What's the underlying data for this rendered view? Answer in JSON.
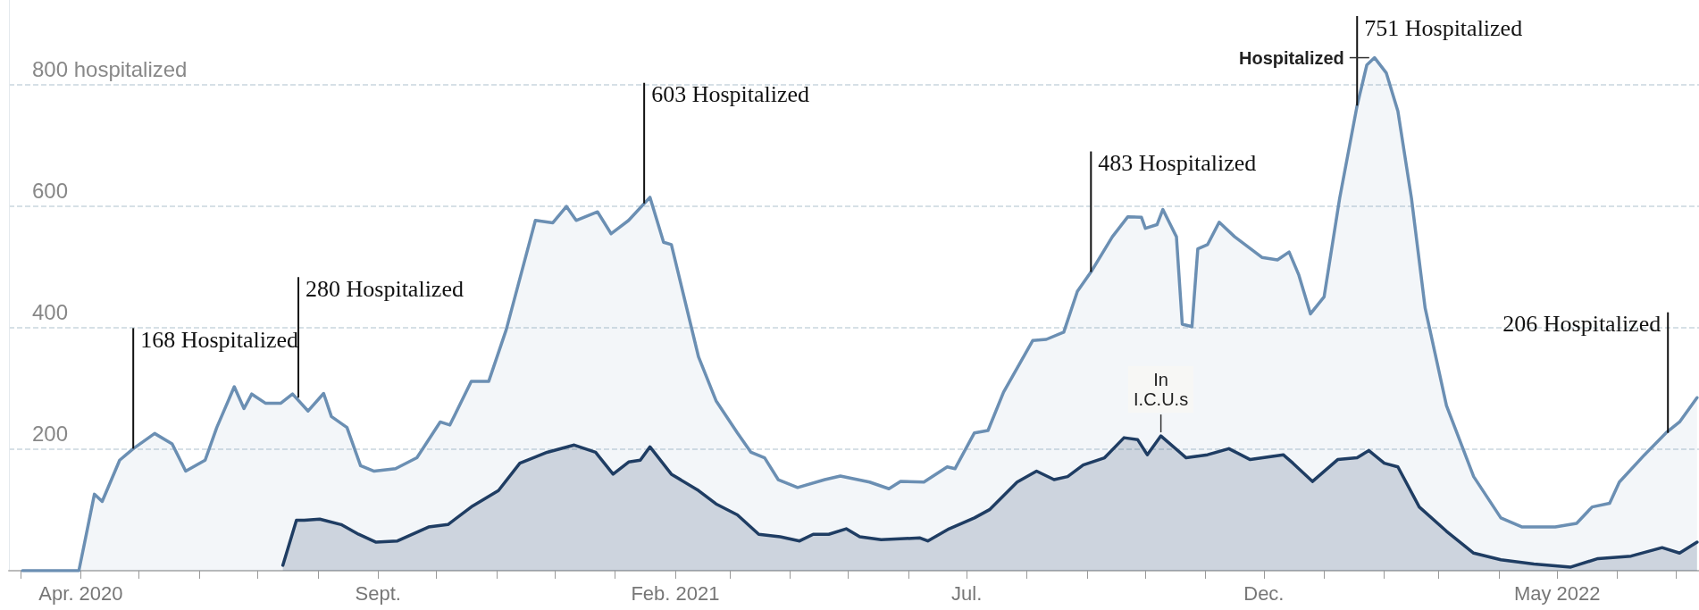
{
  "chart_data": {
    "type": "area",
    "legend": false,
    "grid": "y",
    "xlim": [
      "2020-02-24",
      "2022-07-13"
    ],
    "xticks": [
      {
        "value": "2020-03-01",
        "label": null
      },
      {
        "value": "2020-04-01",
        "label": "Apr. 2020"
      },
      {
        "value": "2020-05-01",
        "label": null
      },
      {
        "value": "2020-06-01",
        "label": null
      },
      {
        "value": "2020-07-01",
        "label": null
      },
      {
        "value": "2020-08-01",
        "label": null
      },
      {
        "value": "2020-09-01",
        "label": "Sept."
      },
      {
        "value": "2020-10-01",
        "label": null
      },
      {
        "value": "2020-11-01",
        "label": null
      },
      {
        "value": "2020-12-01",
        "label": null
      },
      {
        "value": "2021-01-01",
        "label": null
      },
      {
        "value": "2021-02-01",
        "label": "Feb. 2021"
      },
      {
        "value": "2021-03-01",
        "label": null
      },
      {
        "value": "2021-04-01",
        "label": null
      },
      {
        "value": "2021-05-01",
        "label": null
      },
      {
        "value": "2021-06-01",
        "label": null
      },
      {
        "value": "2021-07-01",
        "label": "Jul."
      },
      {
        "value": "2021-08-01",
        "label": null
      },
      {
        "value": "2021-09-01",
        "label": null
      },
      {
        "value": "2021-10-01",
        "label": null
      },
      {
        "value": "2021-11-01",
        "label": null
      },
      {
        "value": "2021-12-01",
        "label": "Dec."
      },
      {
        "value": "2022-01-01",
        "label": null
      },
      {
        "value": "2022-02-01",
        "label": null
      },
      {
        "value": "2022-03-01",
        "label": null
      },
      {
        "value": "2022-04-01",
        "label": null
      },
      {
        "value": "2022-05-01",
        "label": "May 2022"
      },
      {
        "value": "2022-06-01",
        "label": null
      },
      {
        "value": "2022-07-01",
        "label": null
      }
    ],
    "ylim": [
      0,
      940
    ],
    "yticks": [
      200,
      400,
      600,
      {
        "value": 800,
        "label": "800 hospitalized"
      }
    ],
    "series": [
      {
        "name": "Hospitalized",
        "color": "#6b8fb3",
        "x": [
          "2020-03-02",
          "2020-03-31",
          "2020-04-03",
          "2020-04-08",
          "2020-04-12",
          "2020-04-21",
          "2020-04-28",
          "2020-05-09",
          "2020-05-18",
          "2020-05-25",
          "2020-06-04",
          "2020-06-10",
          "2020-06-19",
          "2020-06-24",
          "2020-06-28",
          "2020-07-05",
          "2020-07-13",
          "2020-07-19",
          "2020-07-27",
          "2020-08-04",
          "2020-08-08",
          "2020-08-16",
          "2020-08-23",
          "2020-08-30",
          "2020-09-10",
          "2020-09-21",
          "2020-10-03",
          "2020-10-08",
          "2020-10-19",
          "2020-10-28",
          "2020-11-06",
          "2020-11-21",
          "2020-11-30",
          "2020-12-07",
          "2020-12-12",
          "2020-12-23",
          "2020-12-30",
          "2021-01-08",
          "2021-01-19",
          "2021-01-26",
          "2021-01-30",
          "2021-02-13",
          "2021-02-22",
          "2021-03-05",
          "2021-03-12",
          "2021-03-19",
          "2021-03-26",
          "2021-04-05",
          "2021-04-19",
          "2021-04-27",
          "2021-05-12",
          "2021-05-22",
          "2021-05-28",
          "2021-06-09",
          "2021-06-21",
          "2021-06-25",
          "2021-07-05",
          "2021-07-12",
          "2021-07-20",
          "2021-08-04",
          "2021-08-11",
          "2021-08-20",
          "2021-08-27",
          "2021-09-03",
          "2021-09-14",
          "2021-09-22",
          "2021-09-29",
          "2021-10-01",
          "2021-10-07",
          "2021-10-10",
          "2021-10-17",
          "2021-10-20",
          "2021-10-25",
          "2021-10-28",
          "2021-11-02",
          "2021-11-08",
          "2021-11-16",
          "2021-11-30",
          "2021-12-08",
          "2021-12-14",
          "2021-12-19",
          "2021-12-25",
          "2022-01-01",
          "2022-01-09",
          "2022-01-18",
          "2022-01-23",
          "2022-01-27",
          "2022-02-02",
          "2022-02-08",
          "2022-02-15",
          "2022-02-22",
          "2022-03-05",
          "2022-03-19",
          "2022-04-02",
          "2022-04-13",
          "2022-04-30",
          "2022-05-11",
          "2022-05-19",
          "2022-05-28",
          "2022-06-02",
          "2022-06-15",
          "2022-06-26",
          "2022-07-03",
          "2022-07-12"
        ],
        "values": [
          0,
          0,
          47,
          126,
          114,
          182,
          201,
          226,
          209,
          164,
          182,
          236,
          303,
          267,
          291,
          276,
          276,
          291,
          263,
          292,
          254,
          236,
          173,
          164,
          168,
          186,
          245,
          240,
          312,
          312,
          397,
          577,
          573,
          600,
          577,
          591,
          555,
          577,
          615,
          541,
          537,
          352,
          280,
          227,
          195,
          186,
          150,
          137,
          150,
          156,
          146,
          135,
          147,
          146,
          171,
          168,
          227,
          231,
          294,
          379,
          381,
          393,
          460,
          492,
          550,
          583,
          582,
          564,
          570,
          595,
          550,
          406,
          402,
          530,
          537,
          574,
          550,
          516,
          512,
          525,
          487,
          423,
          451,
          613,
          766,
          833,
          845,
          820,
          757,
          613,
          433,
          272,
          155,
          87,
          72,
          72,
          78,
          105,
          111,
          146,
          191,
          227,
          245,
          285
        ]
      },
      {
        "name": "In I.C.U.s",
        "color": "#1f3d63",
        "x": [
          "2020-07-14",
          "2020-07-21",
          "2020-07-25",
          "2020-08-02",
          "2020-08-13",
          "2020-08-22",
          "2020-08-31",
          "2020-09-11",
          "2020-09-27",
          "2020-10-07",
          "2020-10-19",
          "2020-11-02",
          "2020-11-13",
          "2020-11-27",
          "2020-12-11",
          "2020-12-22",
          "2020-12-31",
          "2021-01-08",
          "2021-01-14",
          "2021-01-19",
          "2021-01-30",
          "2021-02-13",
          "2021-02-22",
          "2021-03-05",
          "2021-03-16",
          "2021-03-27",
          "2021-04-06",
          "2021-04-13",
          "2021-04-21",
          "2021-04-30",
          "2021-05-07",
          "2021-05-18",
          "2021-06-07",
          "2021-06-11",
          "2021-06-22",
          "2021-07-05",
          "2021-07-13",
          "2021-07-27",
          "2021-08-06",
          "2021-08-15",
          "2021-08-22",
          "2021-08-30",
          "2021-09-10",
          "2021-09-20",
          "2021-09-27",
          "2021-10-02",
          "2021-10-09",
          "2021-10-22",
          "2021-11-02",
          "2021-11-13",
          "2021-11-24",
          "2021-12-11",
          "2021-12-16",
          "2021-12-26",
          "2022-01-08",
          "2022-01-18",
          "2022-01-24",
          "2022-02-01",
          "2022-02-08",
          "2022-02-19",
          "2022-03-05",
          "2022-03-19",
          "2022-04-02",
          "2022-04-19",
          "2022-05-08",
          "2022-05-22",
          "2022-06-08",
          "2022-06-24",
          "2022-07-03",
          "2022-07-12"
        ],
        "values": [
          9,
          83,
          83,
          85,
          76,
          60,
          47,
          49,
          72,
          76,
          105,
          132,
          177,
          195,
          207,
          195,
          159,
          179,
          182,
          204,
          159,
          132,
          110,
          92,
          60,
          56,
          49,
          60,
          60,
          69,
          56,
          51,
          54,
          49,
          69,
          87,
          101,
          146,
          164,
          150,
          155,
          174,
          186,
          219,
          216,
          191,
          222,
          186,
          191,
          201,
          183,
          191,
          177,
          147,
          183,
          186,
          198,
          177,
          171,
          105,
          65,
          29,
          18,
          11,
          6,
          20,
          24,
          38,
          29,
          47
        ]
      }
    ],
    "annotations": [
      {
        "text": "168 Hospitalized",
        "x": "2020-04-28",
        "y": 201
      },
      {
        "text": "280 Hospitalized",
        "x": "2020-07-22",
        "y": 285
      },
      {
        "text": "603 Hospitalized",
        "x": "2021-01-16",
        "y": 605
      },
      {
        "text": "483 Hospitalized",
        "x": "2021-09-03",
        "y": 492
      },
      {
        "text": "751 Hospitalized",
        "x": "2022-01-18",
        "y": 766
      },
      {
        "text": "206 Hospitalized",
        "x": "2022-06-27",
        "y": 227
      }
    ]
  }
}
